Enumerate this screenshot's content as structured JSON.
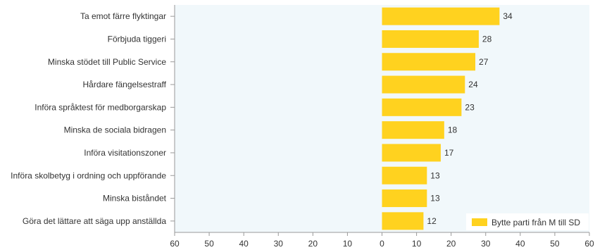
{
  "chart_data": {
    "type": "bar",
    "orientation": "horizontal",
    "title": "",
    "xlabel": "",
    "ylabel": "",
    "categories": [
      "Ta emot färre flyktingar",
      "Förbjuda tiggeri",
      "Minska stödet till Public Service",
      "Hårdare fängelsestraff",
      "Införa språktest för medborgarskap",
      "Minska de sociala bidragen",
      "Införa visitationszoner",
      "Införa skolbetyg i ordning och uppförande",
      "Minska biståndet",
      "Göra det lättare att säga upp anställda"
    ],
    "series": [
      {
        "name": "Bytte parti från M till SD",
        "values": [
          34,
          28,
          27,
          24,
          23,
          18,
          17,
          13,
          13,
          12
        ]
      }
    ],
    "xlim": [
      -60,
      60
    ],
    "x_tick_labels": [
      "60",
      "50",
      "40",
      "30",
      "20",
      "10",
      "0",
      "10",
      "20",
      "30",
      "40",
      "50",
      "60"
    ],
    "grid": false,
    "legend_position": "bottom-right",
    "colors": {
      "bar": "#FFD21F",
      "plot_background": "#F1F8FB",
      "axis": "#999999",
      "text": "#333333"
    }
  }
}
